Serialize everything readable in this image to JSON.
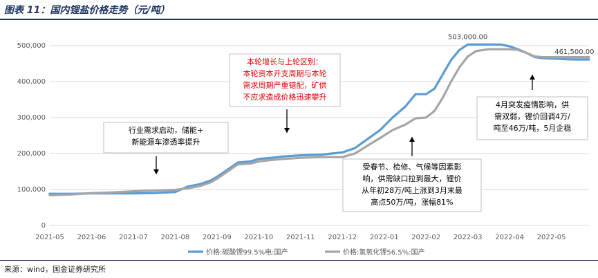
{
  "header": {
    "title": "图表 11：国内锂盐价格走势（元/吨）"
  },
  "source": "来源：wind，国金证券研究所",
  "colors": {
    "accent": "#1f3763",
    "series_carbonate": "#5b9bd5",
    "series_hydroxide": "#a5a5a5",
    "red_text": "#e00000"
  },
  "annotations": [
    {
      "id": "a1",
      "lines": [
        "行业需求启动，储能+",
        "新能源车渗透率提升"
      ],
      "color": "#000000"
    },
    {
      "id": "a2",
      "lines": [
        "本轮增长与上轮区别：",
        "本轮资本开支周期与本轮",
        "需求周期严重错配，矿供",
        "不应求造成价格迅速攀升"
      ],
      "color": "#e00000"
    },
    {
      "id": "a3",
      "lines": [
        "受春节、检修、气候等因素影",
        "响，供需缺口拉到最大，锂价",
        "从年初28万/吨上涨到3月末最",
        "高点50万/吨，涨幅81%"
      ],
      "color": "#000000"
    },
    {
      "id": "a4",
      "lines": [
        "4月突发疫情影响，供",
        "需双弱，锂价回调4万/",
        "吨至46万/吨，5月企稳"
      ],
      "color": "#000000"
    }
  ],
  "chart_data": {
    "type": "line",
    "title": "国内锂盐价格走势（元/吨）",
    "xlabel": "",
    "ylabel": "",
    "ylim": [
      0,
      550000
    ],
    "yticks": [
      0,
      100000,
      200000,
      300000,
      400000,
      500000
    ],
    "ytick_labels": [
      "0",
      "100,000",
      "200,000",
      "300,000",
      "400,000",
      "500,000"
    ],
    "xlim": [
      0,
      12.9
    ],
    "xtick_labels": [
      "2021-05",
      "2021-06",
      "2021-07",
      "2021-08",
      "2021-09",
      "2021-10",
      "2021-11",
      "2021-12",
      "2022-01",
      "2022-02",
      "2022-03",
      "2022-04",
      "2022-05"
    ],
    "grid": true,
    "legend": "bottom",
    "data_labels": [
      {
        "text": "503,000.00",
        "x": 10.0,
        "y": 503000
      },
      {
        "text": "461,500.00",
        "x": 12.55,
        "y": 461500
      }
    ],
    "series": [
      {
        "name": "价格:碳酸锂99.5%电:国产",
        "color": "#5b9bd5",
        "x": [
          0,
          0.5,
          1.0,
          1.5,
          2.0,
          2.5,
          3.0,
          3.3,
          3.6,
          3.85,
          4.0,
          4.25,
          4.5,
          4.8,
          5.0,
          5.3,
          5.6,
          6.0,
          6.5,
          7.0,
          7.3,
          7.6,
          7.9,
          8.2,
          8.5,
          8.75,
          9.0,
          9.2,
          9.4,
          9.6,
          9.8,
          10.0,
          10.2,
          10.5,
          10.8,
          11.0,
          11.2,
          11.4,
          11.6,
          11.8,
          12.0,
          12.2,
          12.4,
          12.6,
          12.9
        ],
        "y": [
          88000,
          88000,
          89000,
          89000,
          89000,
          90000,
          93000,
          108000,
          115000,
          125000,
          135000,
          155000,
          175000,
          178000,
          185000,
          188000,
          192000,
          195000,
          197000,
          203000,
          215000,
          240000,
          265000,
          300000,
          330000,
          365000,
          365000,
          380000,
          420000,
          460000,
          488000,
          503000,
          503000,
          503000,
          503000,
          498000,
          490000,
          480000,
          468000,
          465000,
          464000,
          463000,
          462000,
          461500,
          461500
        ]
      },
      {
        "name": "价格:氢氧化锂56.5%:国产",
        "color": "#a5a5a5",
        "x": [
          0,
          0.5,
          1.0,
          1.5,
          2.0,
          2.5,
          3.0,
          3.3,
          3.6,
          3.85,
          4.0,
          4.25,
          4.5,
          4.8,
          5.0,
          5.3,
          5.6,
          6.0,
          6.5,
          7.0,
          7.3,
          7.6,
          7.9,
          8.2,
          8.5,
          8.75,
          9.0,
          9.2,
          9.4,
          9.6,
          9.8,
          10.0,
          10.2,
          10.5,
          10.8,
          11.0,
          11.2,
          11.4,
          11.6,
          11.8,
          12.0,
          12.2,
          12.4,
          12.6,
          12.9
        ],
        "y": [
          84000,
          86000,
          90000,
          92000,
          95000,
          97000,
          99000,
          103000,
          110000,
          120000,
          130000,
          150000,
          170000,
          172000,
          178000,
          182000,
          185000,
          188000,
          190000,
          190000,
          200000,
          222000,
          243000,
          265000,
          280000,
          298000,
          300000,
          318000,
          355000,
          400000,
          440000,
          470000,
          485000,
          490000,
          490000,
          490000,
          488000,
          480000,
          470000,
          468000,
          468000,
          468000,
          468000,
          468000,
          468000
        ]
      }
    ]
  }
}
